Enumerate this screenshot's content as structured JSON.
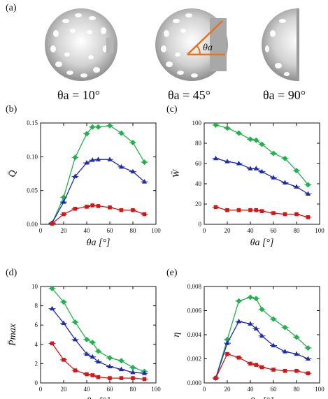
{
  "colors": {
    "green": "#22b14c",
    "blue": "#1f2ba8",
    "red": "#d01818",
    "sphere_shell": "#c9c9c9",
    "annotation": "#e8721c"
  },
  "panel_a": {
    "label": "(a)",
    "icon": "sphere-shell-icon",
    "annotation_symbol": "θa",
    "captions": [
      "θa = 10°",
      "θa = 45°",
      "θa = 90°"
    ]
  },
  "chart_data": [
    {
      "id": "b",
      "label": "(b)",
      "type": "line",
      "ylabel": "Q̄",
      "xlabel": "θa [°]",
      "xlim": [
        0,
        100
      ],
      "ylim": [
        0,
        0.15
      ],
      "xticks": [
        0,
        20,
        40,
        60,
        80,
        100
      ],
      "yticks": [
        0.0,
        0.05,
        0.1,
        0.15
      ],
      "ytick_labels": [
        "0.00",
        "0.05",
        "0.10",
        "0.15"
      ],
      "x": [
        10,
        20,
        30,
        40,
        45,
        50,
        60,
        70,
        80,
        90
      ],
      "series": [
        {
          "color": "green",
          "marker": "diamond",
          "values": [
            0.002,
            0.04,
            0.099,
            0.134,
            0.144,
            0.144,
            0.146,
            0.135,
            0.121,
            0.092
          ]
        },
        {
          "color": "blue",
          "marker": "triangle",
          "values": [
            0.002,
            0.033,
            0.071,
            0.091,
            0.095,
            0.096,
            0.096,
            0.085,
            0.078,
            0.063
          ]
        },
        {
          "color": "red",
          "marker": "square",
          "values": [
            0.001,
            0.015,
            0.023,
            0.026,
            0.028,
            0.027,
            0.025,
            0.021,
            0.021,
            0.015
          ]
        }
      ]
    },
    {
      "id": "c",
      "label": "(c)",
      "type": "line",
      "ylabel": "W̄",
      "xlabel": "θa [°]",
      "xlim": [
        0,
        100
      ],
      "ylim": [
        0,
        100
      ],
      "xticks": [
        0,
        20,
        40,
        60,
        80,
        100
      ],
      "yticks": [
        0,
        20,
        40,
        60,
        80,
        100
      ],
      "ytick_labels": [
        "0",
        "20",
        "40",
        "60",
        "80",
        "100"
      ],
      "x": [
        10,
        20,
        30,
        40,
        45,
        50,
        60,
        70,
        80,
        90
      ],
      "series": [
        {
          "color": "green",
          "marker": "diamond",
          "values": [
            98,
            95,
            90,
            84,
            83,
            79,
            70,
            65,
            53,
            39
          ]
        },
        {
          "color": "blue",
          "marker": "triangle",
          "values": [
            65,
            62,
            60,
            55,
            55,
            52,
            46,
            41,
            37,
            30
          ]
        },
        {
          "color": "red",
          "marker": "square",
          "values": [
            17,
            14,
            14,
            14,
            14,
            13,
            11,
            10,
            10,
            7
          ]
        }
      ]
    },
    {
      "id": "d",
      "label": "(d)",
      "type": "line",
      "ylabel": "P̄max",
      "xlabel": "θa [°]",
      "xlim": [
        0,
        100
      ],
      "ylim": [
        0,
        10
      ],
      "xticks": [
        0,
        20,
        40,
        60,
        80,
        100
      ],
      "yticks": [
        0,
        2,
        4,
        6,
        8,
        10
      ],
      "ytick_labels": [
        "0",
        "2",
        "4",
        "6",
        "8",
        "10"
      ],
      "x": [
        10,
        20,
        30,
        40,
        45,
        50,
        60,
        70,
        80,
        90
      ],
      "series": [
        {
          "color": "green",
          "marker": "diamond",
          "values": [
            9.8,
            8.4,
            6.3,
            4.5,
            4.2,
            3.3,
            2.6,
            2.3,
            1.6,
            1.2
          ]
        },
        {
          "color": "blue",
          "marker": "triangle",
          "values": [
            7.7,
            6.2,
            4.5,
            3.0,
            2.7,
            2.2,
            1.7,
            1.4,
            1.1,
            1.0
          ]
        },
        {
          "color": "red",
          "marker": "square",
          "values": [
            4.1,
            2.4,
            1.3,
            0.9,
            0.8,
            0.6,
            0.5,
            0.5,
            0.5,
            0.4
          ]
        }
      ]
    },
    {
      "id": "e",
      "label": "(e)",
      "type": "line",
      "ylabel": "η",
      "xlabel": "θa [°]",
      "xlim": [
        0,
        100
      ],
      "ylim": [
        0,
        0.008
      ],
      "xticks": [
        0,
        20,
        40,
        60,
        80,
        100
      ],
      "yticks": [
        0,
        0.002,
        0.004,
        0.006,
        0.008
      ],
      "ytick_labels": [
        "0.000",
        "0.002",
        "0.004",
        "0.006",
        "0.008"
      ],
      "x": [
        10,
        20,
        30,
        40,
        45,
        50,
        60,
        70,
        80,
        90
      ],
      "series": [
        {
          "color": "green",
          "marker": "diamond",
          "values": [
            0.0004,
            0.0036,
            0.0068,
            0.0071,
            0.007,
            0.0061,
            0.0053,
            0.0046,
            0.0038,
            0.0029
          ]
        },
        {
          "color": "blue",
          "marker": "triangle",
          "values": [
            0.0004,
            0.0033,
            0.0051,
            0.0049,
            0.0045,
            0.0039,
            0.0031,
            0.0026,
            0.0024,
            0.002
          ]
        },
        {
          "color": "red",
          "marker": "square",
          "values": [
            0.0004,
            0.0024,
            0.0021,
            0.0016,
            0.0015,
            0.0013,
            0.0011,
            0.001,
            0.001,
            0.0008
          ]
        }
      ]
    }
  ]
}
